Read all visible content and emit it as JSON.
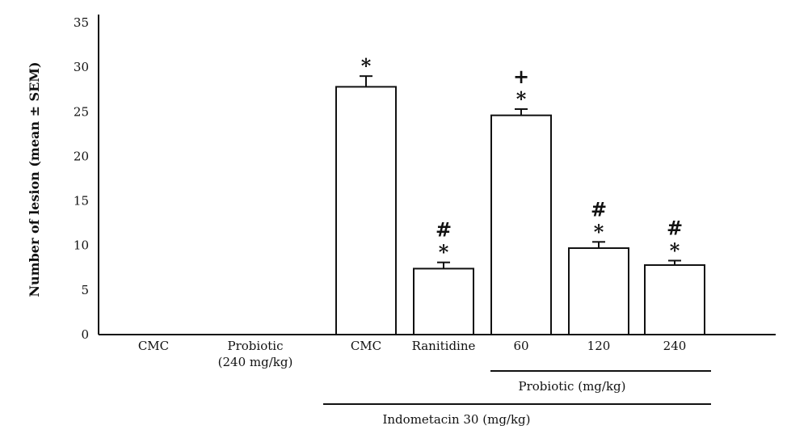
{
  "chart_data": {
    "type": "bar",
    "ylabel": "Number of lesion (mean ± SEM)",
    "ylim": [
      0,
      35
    ],
    "yticks": [
      0,
      5,
      10,
      15,
      20,
      25,
      30,
      35
    ],
    "grid": false,
    "categories": [
      {
        "line1": "CMC",
        "line2": ""
      },
      {
        "line1": "Probiotic",
        "line2": "(240 mg/kg)"
      },
      {
        "line1": "CMC",
        "line2": ""
      },
      {
        "line1": "Ranitidine",
        "line2": ""
      },
      {
        "line1": "60",
        "line2": ""
      },
      {
        "line1": "120",
        "line2": ""
      },
      {
        "line1": "240",
        "line2": ""
      }
    ],
    "values": [
      0,
      0,
      27.8,
      7.4,
      24.6,
      9.7,
      7.8
    ],
    "sem": [
      0,
      0,
      1.2,
      0.7,
      0.7,
      0.7,
      0.5
    ],
    "significance": [
      [],
      [],
      [
        "*"
      ],
      [
        "#",
        "*"
      ],
      [
        "+",
        "*"
      ],
      [
        "#",
        "*"
      ],
      [
        "#",
        "*"
      ]
    ],
    "groups": [
      {
        "label": "Probiotic (mg/kg)",
        "from": 4,
        "to": 6
      },
      {
        "label": "Indometacin 30 (mg/kg)",
        "from": 2,
        "to": 6
      }
    ]
  }
}
